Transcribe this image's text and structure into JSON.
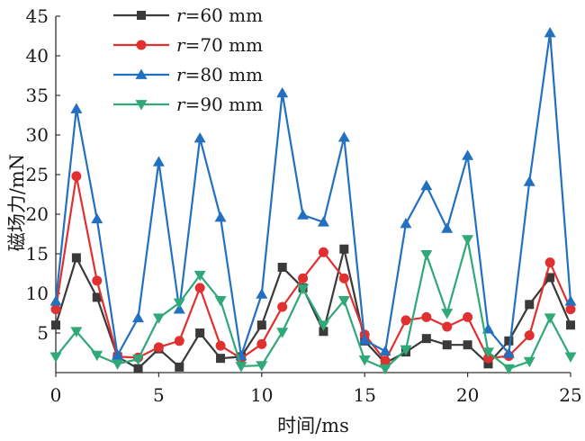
{
  "chart_data": {
    "type": "line",
    "xlabel": "时间/ms",
    "ylabel": "磁场力/mN",
    "xlim": [
      0,
      25
    ],
    "ylim": [
      0,
      45
    ],
    "xticks": [
      "0",
      "5",
      "10",
      "15",
      "20",
      "25"
    ],
    "yticks": [
      "5",
      "10",
      "15",
      "20",
      "25",
      "30",
      "35",
      "40",
      "45"
    ],
    "grid": false,
    "legend_position": "top-left",
    "x": [
      0,
      1,
      2,
      3,
      4,
      5,
      6,
      7,
      8,
      9,
      10,
      11,
      12,
      13,
      14,
      15,
      16,
      17,
      18,
      19,
      20,
      21,
      22,
      23,
      24,
      25
    ],
    "series": [
      {
        "name_var": "r",
        "name_rest": "=60 mm",
        "color": "#3a3a3a",
        "marker": "square",
        "values": [
          6,
          14.5,
          9.5,
          2,
          0.5,
          3,
          0.7,
          5,
          1.8,
          2,
          6,
          13.3,
          10.7,
          5.2,
          15.6,
          4,
          1.2,
          2.6,
          4.3,
          3.5,
          3.5,
          1.1,
          4,
          8.6,
          12,
          6
        ]
      },
      {
        "name_var": "r",
        "name_rest": "=70 mm",
        "color": "#e03030",
        "marker": "circle",
        "values": [
          8,
          24.8,
          11.6,
          2,
          1.9,
          3.2,
          4,
          10.7,
          3.4,
          1.8,
          3.6,
          8.3,
          11.9,
          15.2,
          11.9,
          4.8,
          1.5,
          6.6,
          7,
          5.8,
          7,
          1.8,
          2.1,
          4.7,
          13.9,
          8
        ]
      },
      {
        "name_var": "r",
        "name_rest": "=80 mm",
        "color": "#2470c0",
        "marker": "triangle-up",
        "values": [
          9,
          33.3,
          19.4,
          2.2,
          6.9,
          26.6,
          8,
          29.6,
          19.6,
          2.1,
          9.9,
          35.3,
          19.9,
          19,
          29.7,
          4.1,
          2.7,
          18.8,
          23.6,
          18.2,
          27.4,
          5.5,
          2.4,
          24.1,
          42.9,
          9
        ]
      },
      {
        "name_var": "r",
        "name_rest": "=90 mm",
        "color": "#30a878",
        "marker": "triangle-down",
        "values": [
          2,
          5.2,
          2.2,
          1.1,
          1.7,
          6.9,
          8.8,
          12.3,
          9.1,
          0.8,
          0.9,
          5.1,
          10.6,
          6,
          9.1,
          1.6,
          0.5,
          2.9,
          14.9,
          7.5,
          16.8,
          2.6,
          0.5,
          1.4,
          6.9,
          2
        ]
      }
    ]
  }
}
